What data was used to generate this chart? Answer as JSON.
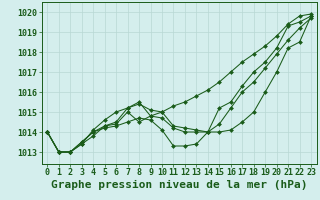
{
  "background_color": "#d4eeed",
  "grid_color": "#b8d8d4",
  "line_color": "#1a5c1a",
  "marker_color": "#1a5c1a",
  "title": "Graphe pression niveau de la mer (hPa)",
  "xlim": [
    -0.5,
    23.5
  ],
  "ylim": [
    1012.4,
    1020.5
  ],
  "yticks": [
    1013,
    1014,
    1015,
    1016,
    1017,
    1018,
    1019,
    1020
  ],
  "xticks": [
    0,
    1,
    2,
    3,
    4,
    5,
    6,
    7,
    8,
    9,
    10,
    11,
    12,
    13,
    14,
    15,
    16,
    17,
    18,
    19,
    20,
    21,
    22,
    23
  ],
  "series": [
    [
      1014.0,
      1013.0,
      1013.0,
      1013.5,
      1014.0,
      1014.3,
      1014.4,
      1015.0,
      1014.5,
      1014.8,
      1015.0,
      1015.3,
      1015.5,
      1015.8,
      1016.1,
      1016.5,
      1017.0,
      1017.5,
      1017.9,
      1018.3,
      1018.8,
      1019.4,
      1019.8,
      1019.9
    ],
    [
      1014.0,
      1013.0,
      1013.0,
      1013.5,
      1014.0,
      1014.2,
      1014.3,
      1014.5,
      1014.7,
      1014.6,
      1014.1,
      1013.3,
      1013.3,
      1013.4,
      1014.0,
      1015.2,
      1015.5,
      1016.3,
      1017.0,
      1017.5,
      1018.2,
      1019.3,
      1019.5,
      1019.8
    ],
    [
      1014.0,
      1013.0,
      1013.0,
      1013.4,
      1013.8,
      1014.3,
      1014.5,
      1015.2,
      1015.4,
      1015.1,
      1015.0,
      1014.3,
      1014.2,
      1014.1,
      1014.0,
      1014.4,
      1015.2,
      1016.0,
      1016.5,
      1017.2,
      1017.9,
      1018.6,
      1019.2,
      1019.7
    ],
    [
      1014.0,
      1013.0,
      1013.0,
      1013.4,
      1014.1,
      1014.6,
      1015.0,
      1015.2,
      1015.5,
      1014.8,
      1014.7,
      1014.2,
      1014.0,
      1014.0,
      1014.0,
      1014.0,
      1014.1,
      1014.5,
      1015.0,
      1016.0,
      1017.0,
      1018.2,
      1018.5,
      1019.8
    ]
  ],
  "title_fontsize": 8,
  "tick_fontsize": 6
}
